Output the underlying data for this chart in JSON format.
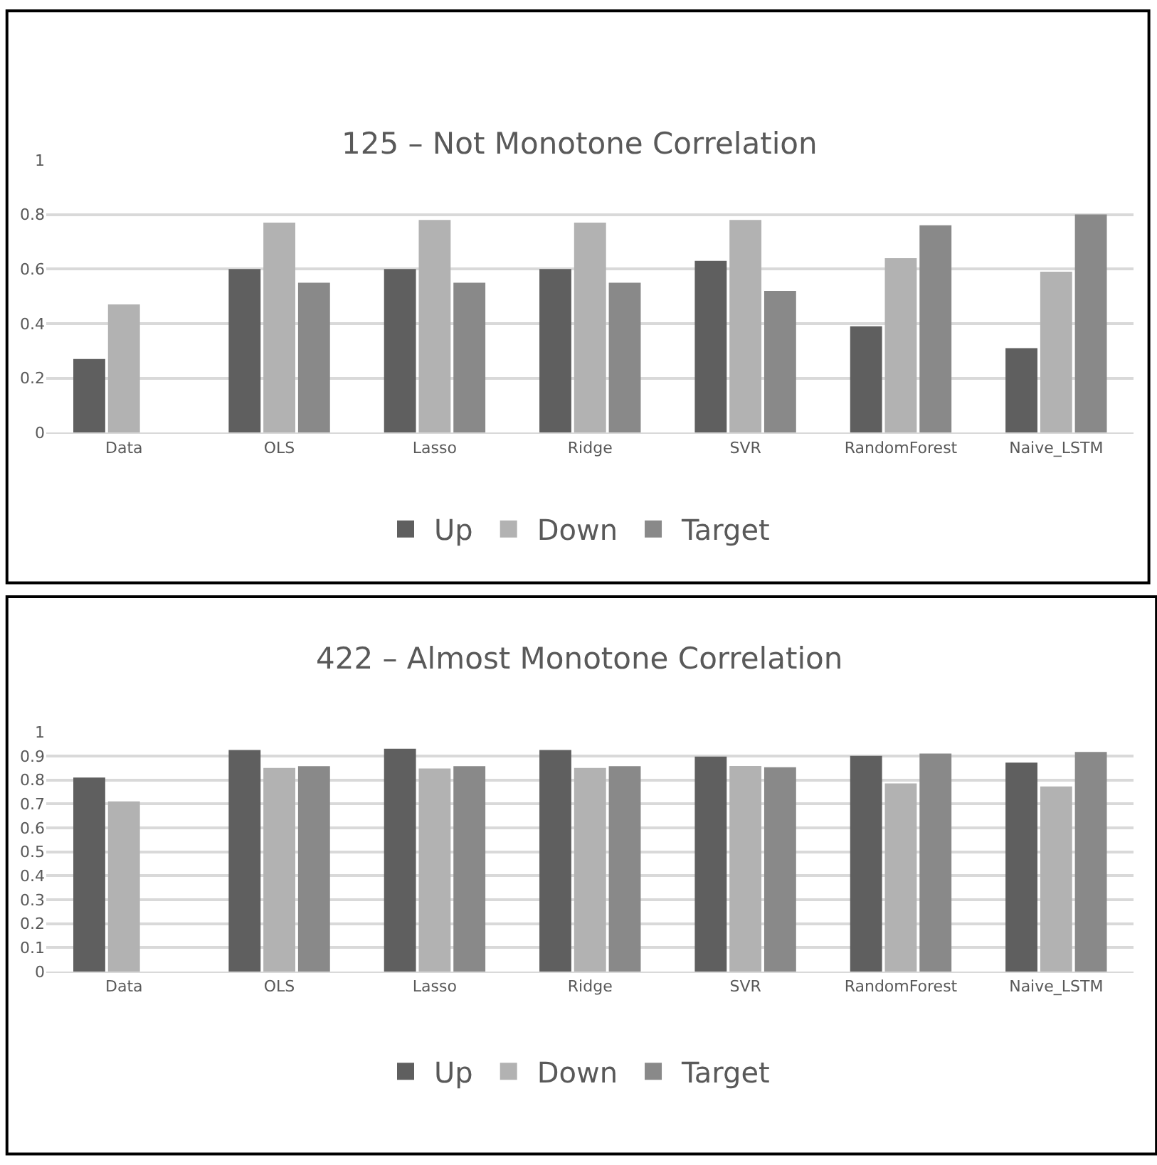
{
  "chart_data": [
    {
      "type": "bar",
      "title": "125 – Not Monotone Correlation",
      "categories": [
        "Data",
        "OLS",
        "Lasso",
        "Ridge",
        "SVR",
        "RandomForest",
        "Naive_LSTM"
      ],
      "series": [
        {
          "name": "Up",
          "color": "#5f5f5f",
          "values": [
            0.27,
            0.6,
            0.6,
            0.6,
            0.63,
            0.39,
            0.31
          ]
        },
        {
          "name": "Down",
          "color": "#b2b2b2",
          "values": [
            0.47,
            0.77,
            0.78,
            0.77,
            0.78,
            0.64,
            0.59
          ]
        },
        {
          "name": "Target",
          "color": "#898989",
          "values": [
            null,
            0.55,
            0.55,
            0.55,
            0.52,
            0.76,
            0.8
          ]
        }
      ],
      "ylim": [
        0,
        1
      ],
      "yticks": [
        0,
        0.2,
        0.4,
        0.6,
        0.8,
        1
      ],
      "grid": "y",
      "legend": "bottom"
    },
    {
      "type": "bar",
      "title": "422 – Almost Monotone Correlation",
      "categories": [
        "Data",
        "OLS",
        "Lasso",
        "Ridge",
        "SVR",
        "RandomForest",
        "Naive_LSTM"
      ],
      "series": [
        {
          "name": "Up",
          "color": "#5f5f5f",
          "values": [
            0.81,
            0.925,
            0.93,
            0.925,
            0.897,
            0.9,
            0.872
          ]
        },
        {
          "name": "Down",
          "color": "#b2b2b2",
          "values": [
            0.71,
            0.85,
            0.848,
            0.85,
            0.858,
            0.785,
            0.773
          ]
        },
        {
          "name": "Target",
          "color": "#898989",
          "values": [
            null,
            0.857,
            0.857,
            0.857,
            0.853,
            0.91,
            0.917
          ]
        }
      ],
      "ylim": [
        0,
        1
      ],
      "yticks": [
        0,
        0.1,
        0.2,
        0.3,
        0.4,
        0.5,
        0.6,
        0.7,
        0.8,
        0.9,
        1
      ],
      "grid": "y",
      "legend": "bottom"
    }
  ]
}
